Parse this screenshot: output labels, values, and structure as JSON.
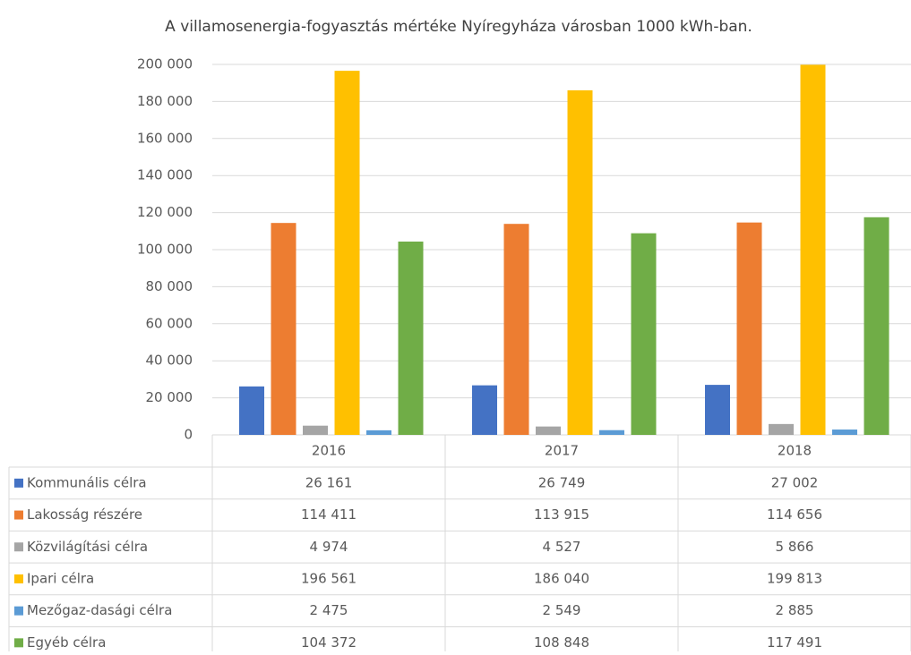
{
  "chart_data": {
    "type": "bar",
    "title": "A villamosenergia-fogyasztás mértéke Nyíregyháza városban 1000 kWh-ban.",
    "categories": [
      "2016",
      "2017",
      "2018"
    ],
    "series": [
      {
        "name": "Kommunális célra",
        "color": "#4472c4",
        "values": [
          26161,
          26749,
          27002
        ],
        "value_labels": [
          "26 161",
          "26 749",
          "27 002"
        ]
      },
      {
        "name": "Lakosság részére",
        "color": "#ed7d31",
        "values": [
          114411,
          113915,
          114656
        ],
        "value_labels": [
          "114 411",
          "113 915",
          "114 656"
        ]
      },
      {
        "name": "Közvilágítási célra",
        "color": "#a5a5a5",
        "values": [
          4974,
          4527,
          5866
        ],
        "value_labels": [
          "4 974",
          "4 527",
          "5 866"
        ]
      },
      {
        "name": "Ipari célra",
        "color": "#ffc000",
        "values": [
          196561,
          186040,
          199813
        ],
        "value_labels": [
          "196 561",
          "186 040",
          "199 813"
        ]
      },
      {
        "name": "Mezőgaz-dasági célra",
        "color": "#5b9bd5",
        "values": [
          2475,
          2549,
          2885
        ],
        "value_labels": [
          "2 475",
          "2 549",
          "2 885"
        ]
      },
      {
        "name": "Egyéb célra",
        "color": "#70ad47",
        "values": [
          104372,
          108848,
          117491
        ],
        "value_labels": [
          "104 372",
          "108 848",
          "117 491"
        ]
      }
    ],
    "ylim": [
      0,
      200000
    ],
    "yticks": [
      0,
      {
        "value": 20000,
        "label": "20 000"
      },
      {
        "value": 40000,
        "label": "40 000"
      },
      {
        "value": 60000,
        "label": "60 000"
      },
      {
        "value": 80000,
        "label": "80 000"
      },
      {
        "value": 100000,
        "label": "100 000"
      },
      {
        "value": 120000,
        "label": "120 000"
      },
      {
        "value": 140000,
        "label": "140 000"
      },
      {
        "value": 160000,
        "label": "160 000"
      },
      {
        "value": 180000,
        "label": "180 000"
      },
      {
        "value": 200000,
        "label": "200 000"
      }
    ],
    "grid": true
  }
}
